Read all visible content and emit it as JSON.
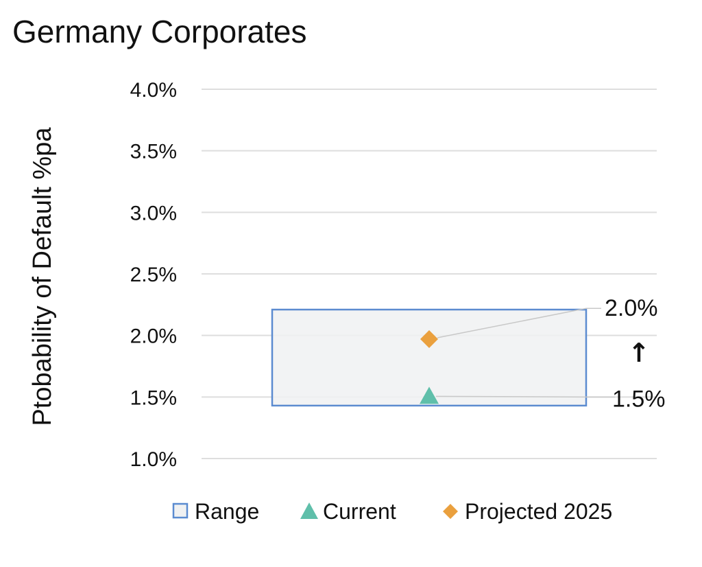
{
  "chart_data": {
    "type": "scatter",
    "title": "Germany Corporates",
    "ylabel": "Ptobability of Default %pa",
    "xlabel": "",
    "ylim": [
      0.01,
      0.04
    ],
    "y_ticks": [
      0.01,
      0.015,
      0.02,
      0.025,
      0.03,
      0.035,
      0.04
    ],
    "y_tick_labels": [
      "1.0%",
      "1.5%",
      "2.0%",
      "2.5%",
      "3.0%",
      "3.5%",
      "4.0%"
    ],
    "grid": true,
    "legend_position": "bottom",
    "range": {
      "name": "Range",
      "low": 0.0143,
      "high": 0.0221,
      "color": "#5b8bd0",
      "fill": "#f0f1f2"
    },
    "series": [
      {
        "name": "Current",
        "value": 0.015,
        "label": "1.5%",
        "marker": "triangle",
        "color": "#5fbfaa"
      },
      {
        "name": "Projected 2025",
        "value": 0.0197,
        "label": "2.0%",
        "marker": "diamond",
        "color": "#eaa03e"
      }
    ],
    "annotation": {
      "symbol": "↑",
      "meaning": "increase"
    }
  }
}
